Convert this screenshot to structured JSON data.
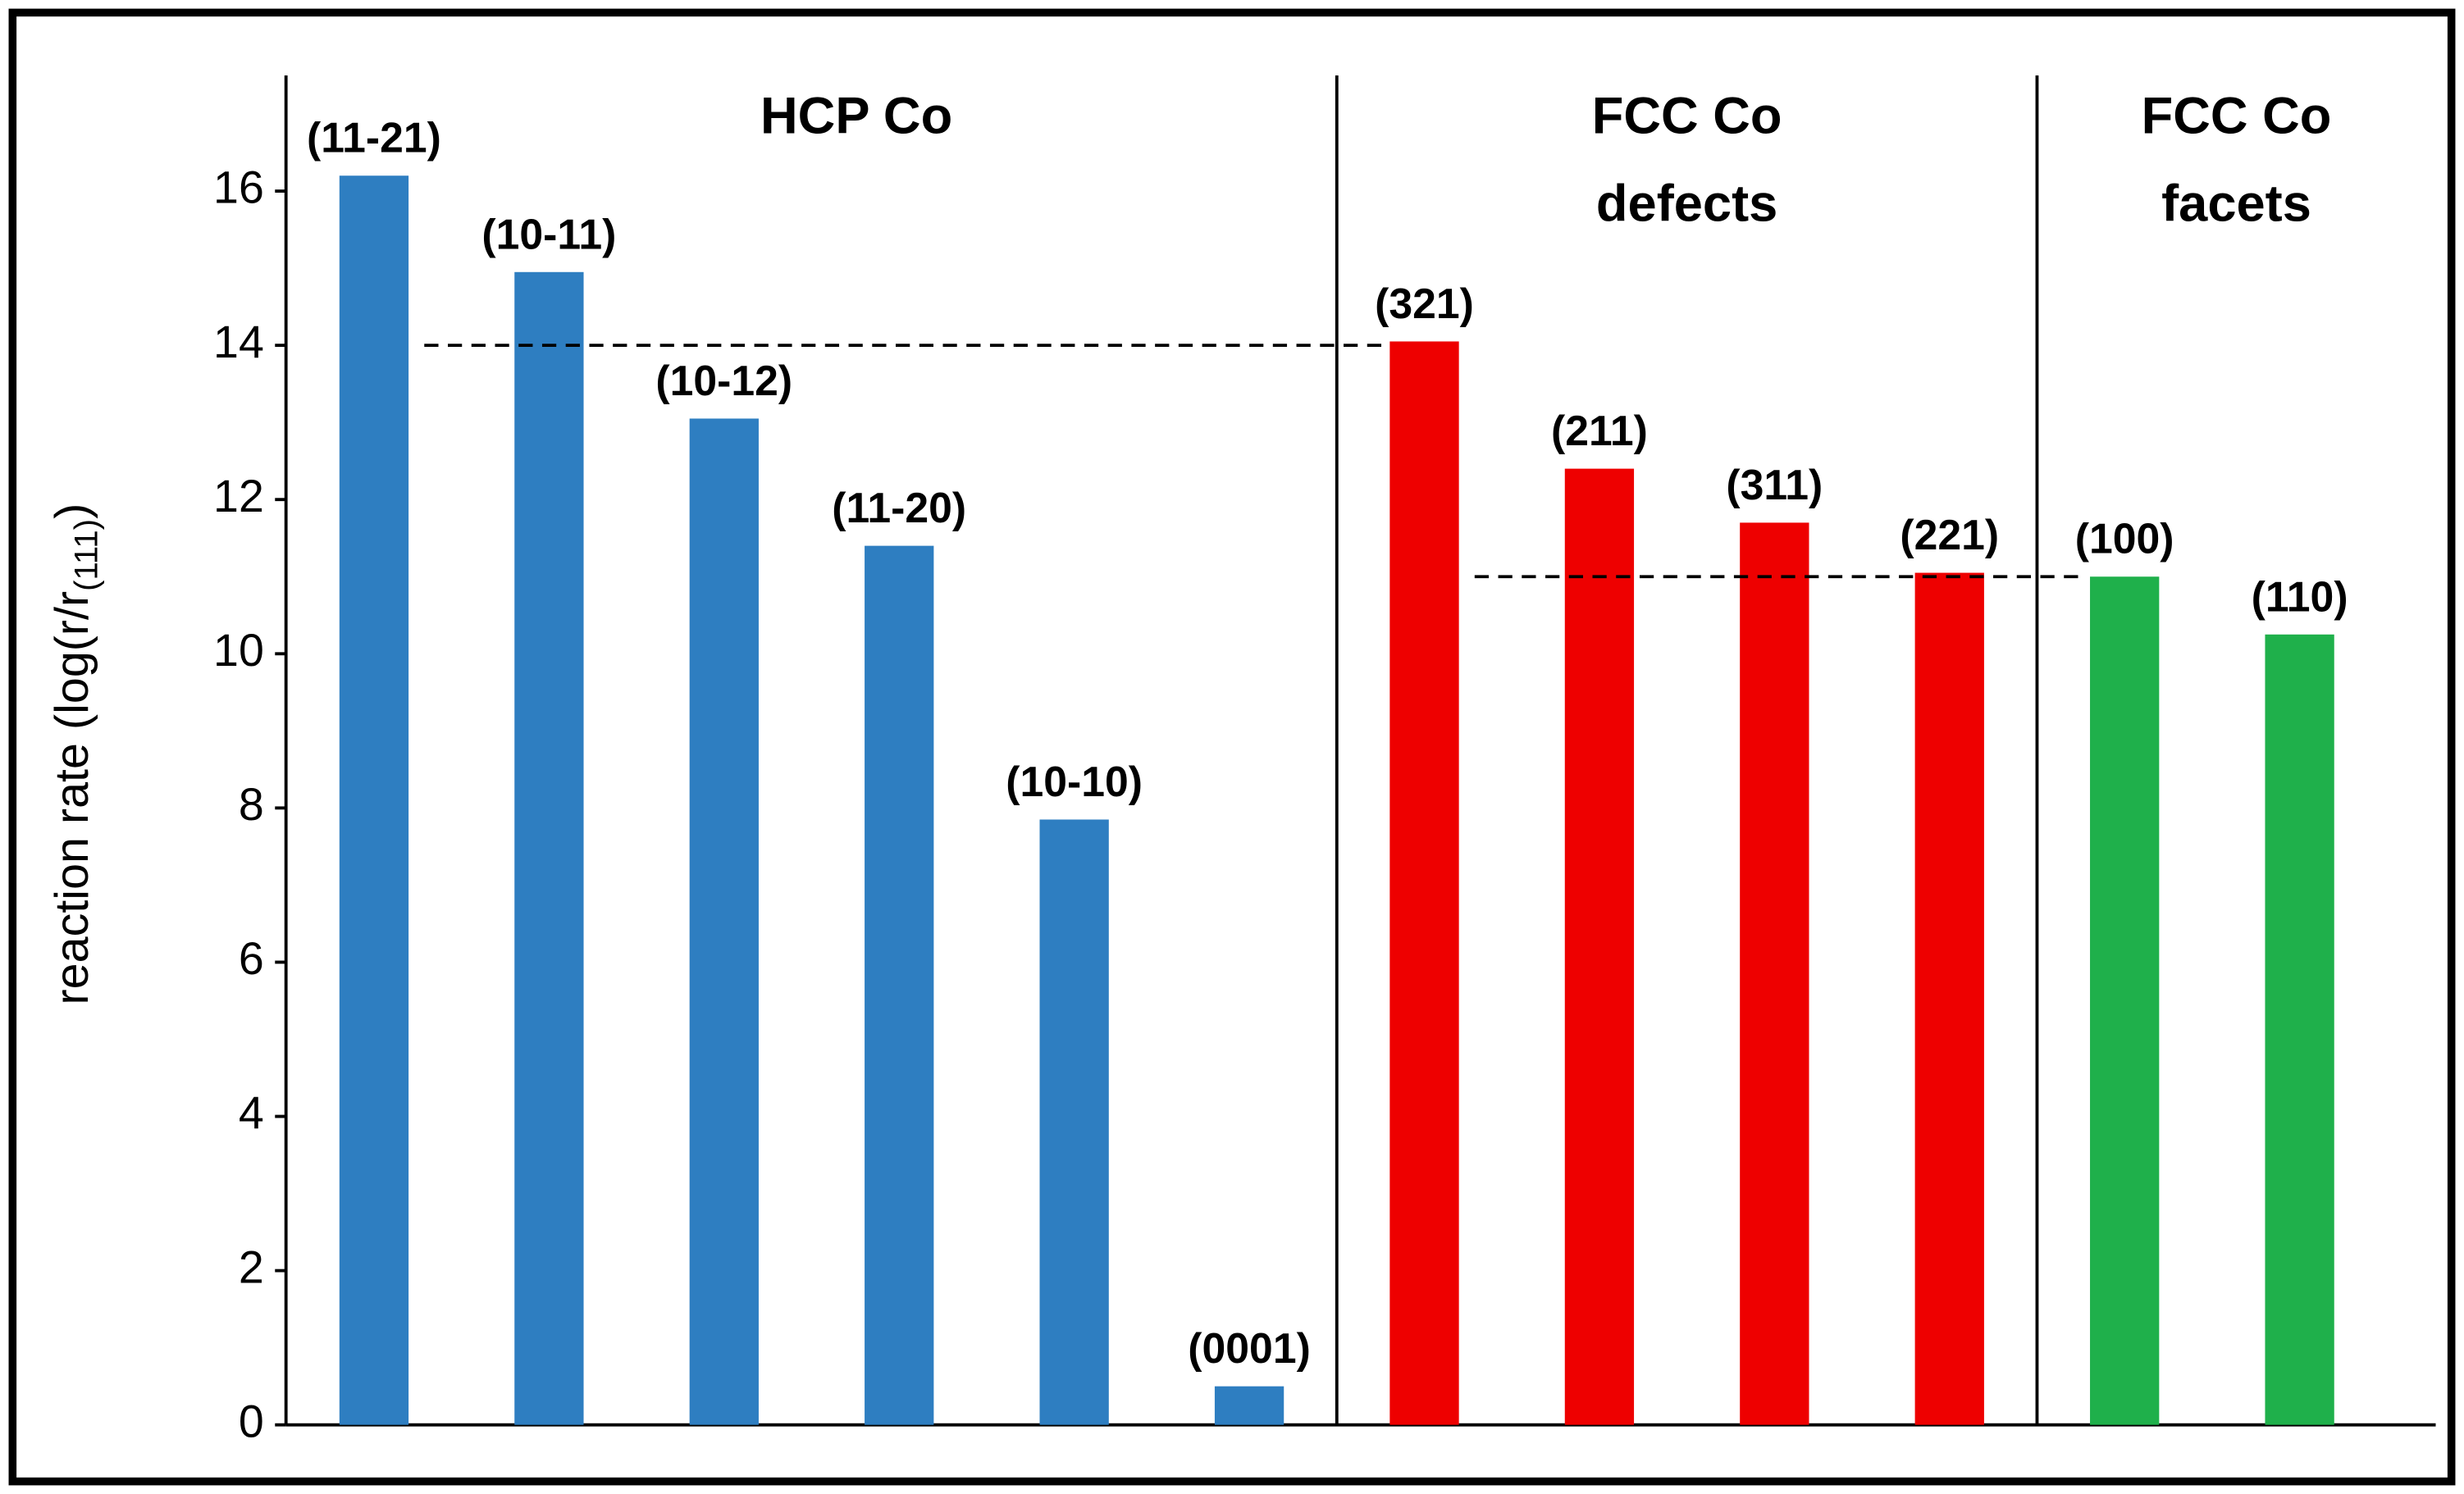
{
  "chart_data": {
    "type": "bar",
    "ylabel": "reaction rate (log(r/r",
    "ylabel_subscript": "(111)",
    "ylabel_suffix": ")",
    "categories": [
      "(11-21)",
      "(10-11)",
      "(10-12)",
      "(11-20)",
      "(10-10)",
      "(0001)",
      "(321)",
      "(211)",
      "(311)",
      "(221)",
      "(100)",
      "(110)"
    ],
    "values": [
      16.2,
      14.95,
      13.05,
      11.4,
      7.85,
      0.5,
      14.05,
      12.4,
      11.7,
      11.05,
      11.0,
      10.25
    ],
    "colors": [
      "#2e7ec1",
      "#2e7ec1",
      "#2e7ec1",
      "#2e7ec1",
      "#2e7ec1",
      "#2e7ec1",
      "#ee0000",
      "#ee0000",
      "#ee0000",
      "#ee0000",
      "#1fb04b",
      "#1fb04b"
    ],
    "groups": [
      {
        "label": [
          "HCP Co"
        ]
      },
      {
        "label": [
          "FCC Co",
          "defects"
        ]
      },
      {
        "label": [
          "FCC Co",
          "facets"
        ]
      }
    ],
    "reference_lines": [
      {
        "value": 14
      },
      {
        "value": 11
      }
    ],
    "ylim": [
      0,
      17.5
    ],
    "yticks": [
      0,
      2,
      4,
      6,
      8,
      10,
      12,
      14,
      16
    ],
    "grid": false
  }
}
